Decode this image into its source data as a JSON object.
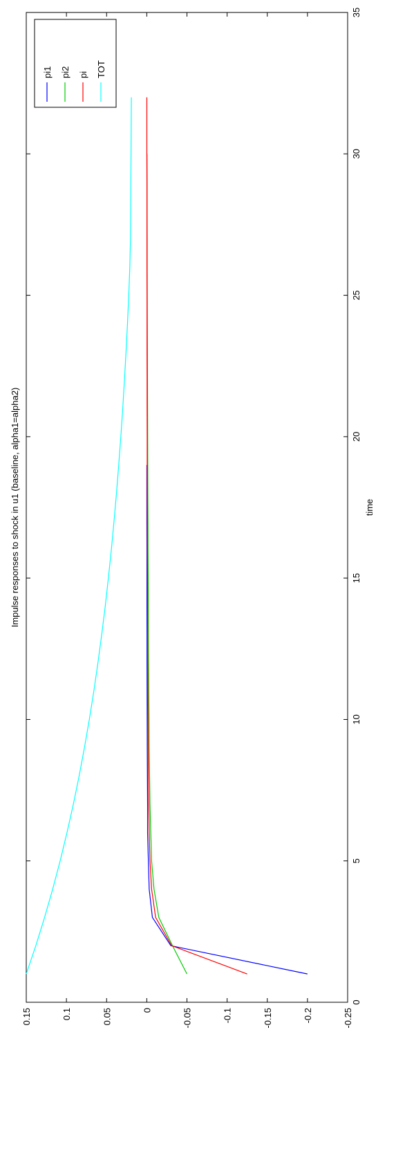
{
  "chart_data": {
    "type": "line",
    "title": "Impulse responses to shock in u1 (baseline, alpha1=alpha2)",
    "xlabel": "time",
    "ylabel": "",
    "xlim": [
      0,
      35
    ],
    "ylim": [
      -0.25,
      0.15
    ],
    "xticks": [
      0,
      5,
      10,
      15,
      20,
      25,
      30,
      35
    ],
    "yticks": [
      -0.25,
      -0.2,
      -0.15,
      -0.1,
      -0.05,
      0,
      0.05,
      0.1,
      0.15
    ],
    "ytick_labels": [
      "-0.25",
      "-0.2",
      "-0.15",
      "-0.1",
      "-0.05",
      "0",
      "0.05",
      "0.1",
      "0.15"
    ],
    "grid": false,
    "legend_position": "top-right",
    "series": [
      {
        "name": "pi1",
        "color": "#0000ff",
        "x": [
          1,
          2,
          3,
          4,
          5,
          6,
          7,
          8,
          9,
          10,
          11,
          12,
          13,
          14,
          15,
          16,
          17,
          18,
          19
        ],
        "y": [
          -0.2,
          -0.03,
          -0.007,
          -0.003,
          -0.002,
          -0.001,
          -0.001,
          -0.0008,
          -0.0006,
          -0.0005,
          -0.0004,
          -0.0003,
          -0.0003,
          -0.0002,
          -0.0002,
          -0.0002,
          -0.0001,
          -0.0001,
          -0.0001
        ]
      },
      {
        "name": "pi2",
        "color": "#00cc00",
        "x": [
          1,
          2,
          3,
          4,
          5,
          6,
          7,
          8,
          9,
          10,
          11,
          12,
          13,
          14,
          15,
          16,
          17,
          18,
          19,
          20,
          21,
          22,
          23,
          24,
          25,
          26,
          27,
          28,
          29,
          30
        ],
        "y": [
          -0.05,
          -0.032,
          -0.015,
          -0.009,
          -0.006,
          -0.005,
          -0.004,
          -0.0035,
          -0.003,
          -0.0028,
          -0.0025,
          -0.0023,
          -0.0021,
          -0.002,
          -0.0018,
          -0.0016,
          -0.0015,
          -0.0013,
          -0.0012,
          -0.0011,
          -0.001,
          -0.0009,
          -0.0008,
          -0.0007,
          -0.0006,
          -0.0005,
          -0.0005,
          -0.0004,
          -0.0004,
          -0.0003
        ]
      },
      {
        "name": "pi",
        "color": "#ff0000",
        "x": [
          1,
          2,
          3,
          4,
          5,
          6,
          7,
          8,
          9,
          10,
          11,
          12,
          13,
          14,
          15,
          16,
          17,
          18,
          19,
          20,
          21,
          22,
          23,
          24,
          25,
          26,
          27,
          28,
          29,
          30,
          31,
          32
        ],
        "y": [
          -0.125,
          -0.031,
          -0.011,
          -0.006,
          -0.004,
          -0.003,
          -0.0025,
          -0.002,
          -0.0018,
          -0.0016,
          -0.0014,
          -0.0012,
          -0.0011,
          -0.001,
          -0.0009,
          -0.0008,
          -0.0007,
          -0.0006,
          -0.0005,
          -0.0005,
          -0.0004,
          -0.0004,
          -0.0003,
          -0.0003,
          -0.0003,
          -0.0002,
          -0.0002,
          -0.0002,
          -0.0002,
          -0.0001,
          -0.0001,
          -0.0001
        ]
      },
      {
        "name": "TOT",
        "color": "#00ffff",
        "x": [
          1,
          2,
          3,
          4,
          5,
          6,
          7,
          8,
          9,
          10,
          11,
          12,
          13,
          14,
          15,
          16,
          17,
          18,
          19,
          20,
          21,
          22,
          23,
          24,
          25,
          26,
          27,
          28,
          29,
          30,
          31,
          32
        ],
        "y": [
          0.15,
          0.1381,
          0.1272,
          0.1171,
          0.1078,
          0.0993,
          0.0914,
          0.0842,
          0.0776,
          0.0715,
          0.0659,
          0.0608,
          0.0561,
          0.0517,
          0.0478,
          0.0441,
          0.0408,
          0.0377,
          0.0349,
          0.0323,
          0.0299,
          0.0278,
          0.0258,
          0.024,
          0.0224,
          0.0211,
          0.0203,
          0.02,
          0.0198,
          0.0196,
          0.0194,
          0.0192
        ]
      }
    ]
  }
}
